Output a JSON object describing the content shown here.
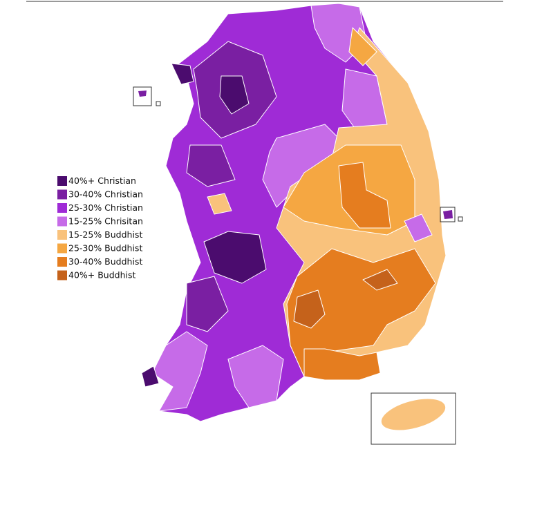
{
  "legend": {
    "items": [
      {
        "label": "40%+ Christian",
        "color": "#4b0c6e"
      },
      {
        "label": "30-40% Christian",
        "color": "#7a1fa2"
      },
      {
        "label": "25-30% Christian",
        "color": "#9f2bd6"
      },
      {
        "label": "15-25% Chrisitan",
        "color": "#c66be8"
      },
      {
        "label": "15-25% Buddhist",
        "color": "#f9c27c"
      },
      {
        "label": "25-30% Buddhist",
        "color": "#f5a742"
      },
      {
        "label": "30-40% Buddhist",
        "color": "#e57d1f"
      },
      {
        "label": "40%+ Buddhist",
        "color": "#c5621b"
      }
    ]
  }
}
